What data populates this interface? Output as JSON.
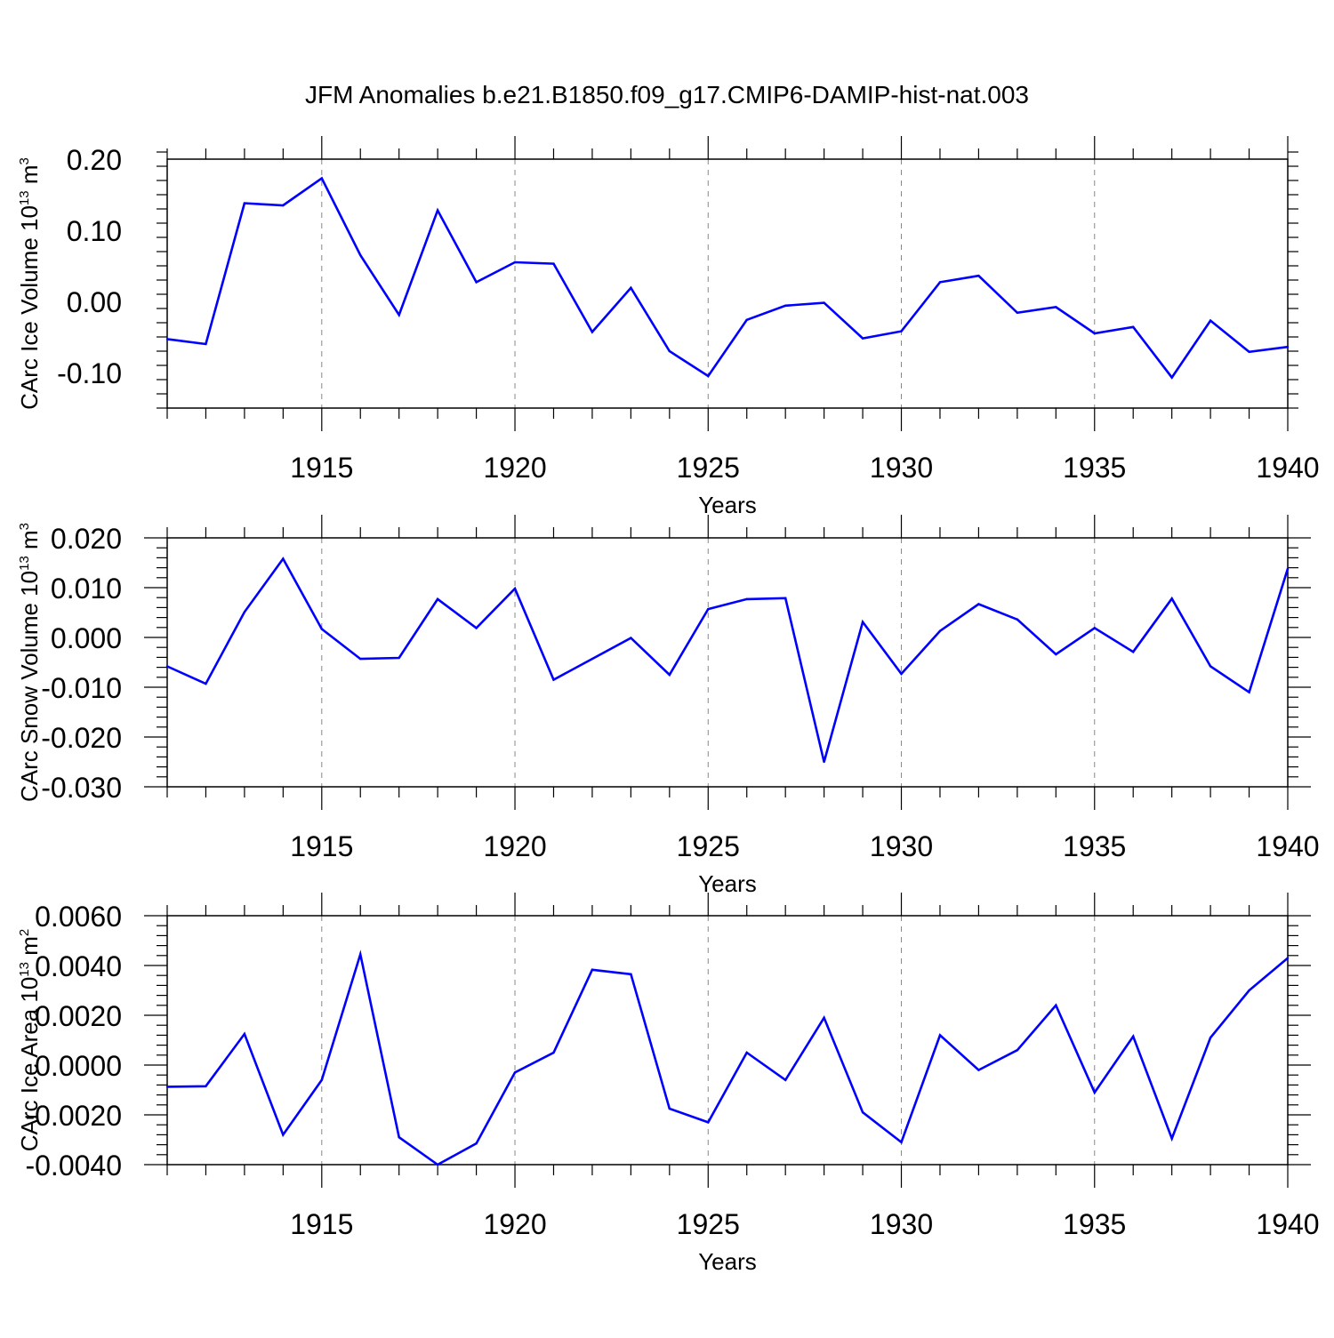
{
  "title": "JFM Anomalies b.e21.B1850.f09_g17.CMIP6-DAMIP-hist-nat.003",
  "colors": {
    "series": "#0000ff",
    "frame": "#000000",
    "grid": "#888888",
    "background": "#ffffff"
  },
  "chart_data": [
    {
      "type": "line",
      "xlabel": "Years",
      "ylabel_main": "CArc Ice Volume 10",
      "ylabel_exp": "13",
      "ylabel_unit": " m",
      "ylabel_unit_exp": "3",
      "xlim": [
        1911,
        1940
      ],
      "ylim": [
        -0.15,
        0.2
      ],
      "x_ticks": [
        1915,
        1920,
        1925,
        1930,
        1935,
        1940
      ],
      "x_tick_labels": [
        "1915",
        "1920",
        "1925",
        "1930",
        "1935",
        "1940"
      ],
      "y_ticks": [
        0.2,
        0.1,
        0.0,
        -0.1
      ],
      "y_tick_labels": [
        "0.20",
        "0.10",
        "0.00",
        "-0.10"
      ],
      "grid": "vertical dashed at labeled years",
      "x": [
        1911,
        1912,
        1913,
        1914,
        1915,
        1916,
        1917,
        1918,
        1919,
        1920,
        1921,
        1922,
        1923,
        1924,
        1925,
        1926,
        1927,
        1928,
        1929,
        1930,
        1931,
        1932,
        1933,
        1934,
        1935,
        1936,
        1937,
        1938,
        1939,
        1940
      ],
      "values": [
        -0.053,
        -0.06,
        0.138,
        0.135,
        0.173,
        0.065,
        -0.019,
        0.128,
        0.027,
        0.055,
        0.053,
        -0.043,
        0.019,
        -0.07,
        -0.105,
        -0.026,
        -0.006,
        -0.002,
        -0.052,
        -0.042,
        0.027,
        0.036,
        -0.016,
        -0.008,
        -0.045,
        -0.036,
        -0.107,
        -0.027,
        -0.071,
        -0.064
      ]
    },
    {
      "type": "line",
      "xlabel": "Years",
      "ylabel_main": "CArc Snow Volume 10",
      "ylabel_exp": "13",
      "ylabel_unit": " m",
      "ylabel_unit_exp": "3",
      "xlim": [
        1911,
        1940
      ],
      "ylim": [
        -0.03,
        0.02
      ],
      "x_ticks": [
        1915,
        1920,
        1925,
        1930,
        1935,
        1940
      ],
      "x_tick_labels": [
        "1915",
        "1920",
        "1925",
        "1930",
        "1935",
        "1940"
      ],
      "y_ticks": [
        0.02,
        0.01,
        0.0,
        -0.01,
        -0.02,
        -0.03
      ],
      "y_tick_labels": [
        "0.020",
        "0.010",
        "0.000",
        "-0.010",
        "-0.020",
        "-0.030"
      ],
      "grid": "vertical dashed at labeled years",
      "x": [
        1911,
        1912,
        1913,
        1914,
        1915,
        1916,
        1917,
        1918,
        1919,
        1920,
        1921,
        1922,
        1923,
        1924,
        1925,
        1926,
        1927,
        1928,
        1929,
        1930,
        1931,
        1932,
        1933,
        1934,
        1935,
        1936,
        1937,
        1938,
        1939,
        1940
      ],
      "values": [
        -0.0058,
        -0.0093,
        0.0051,
        0.0158,
        0.0017,
        -0.0043,
        -0.0041,
        0.0077,
        0.0019,
        0.0098,
        -0.0085,
        -0.0043,
        -0.0001,
        -0.0075,
        0.0057,
        0.0077,
        0.0079,
        -0.025,
        0.0031,
        -0.0073,
        0.0013,
        0.0067,
        0.0036,
        -0.0034,
        0.0019,
        -0.0029,
        0.0078,
        -0.0058,
        -0.011,
        0.0138
      ]
    },
    {
      "type": "line",
      "xlabel": "Years",
      "ylabel_main": "CArc Ice Area 10",
      "ylabel_exp": "13",
      "ylabel_unit": " m",
      "ylabel_unit_exp": "2",
      "xlim": [
        1911,
        1940
      ],
      "ylim": [
        -0.004,
        0.006
      ],
      "x_ticks": [
        1915,
        1920,
        1925,
        1930,
        1935,
        1940
      ],
      "x_tick_labels": [
        "1915",
        "1920",
        "1925",
        "1930",
        "1935",
        "1940"
      ],
      "y_ticks": [
        0.006,
        0.004,
        0.002,
        0.0,
        -0.002,
        -0.004
      ],
      "y_tick_labels": [
        "0.0060",
        "0.0040",
        "0.0020",
        "0.0000",
        "-0.0020",
        "-0.0040"
      ],
      "grid": "vertical dashed at labeled years",
      "x": [
        1911,
        1912,
        1913,
        1914,
        1915,
        1916,
        1917,
        1918,
        1919,
        1920,
        1921,
        1922,
        1923,
        1924,
        1925,
        1926,
        1927,
        1928,
        1929,
        1930,
        1931,
        1932,
        1933,
        1934,
        1935,
        1936,
        1937,
        1938,
        1939,
        1940
      ],
      "values": [
        -0.00087,
        -0.00085,
        0.00125,
        -0.0028,
        -0.0006,
        0.00445,
        -0.0029,
        -0.004,
        -0.00315,
        -0.0003,
        0.0005,
        0.00383,
        0.00365,
        -0.00175,
        -0.0023,
        0.0005,
        -0.0006,
        0.0019,
        -0.0019,
        -0.0031,
        0.0012,
        -0.0002,
        0.0006,
        0.0024,
        -0.0011,
        0.00115,
        -0.00295,
        0.0011,
        0.003,
        0.0043
      ]
    }
  ]
}
